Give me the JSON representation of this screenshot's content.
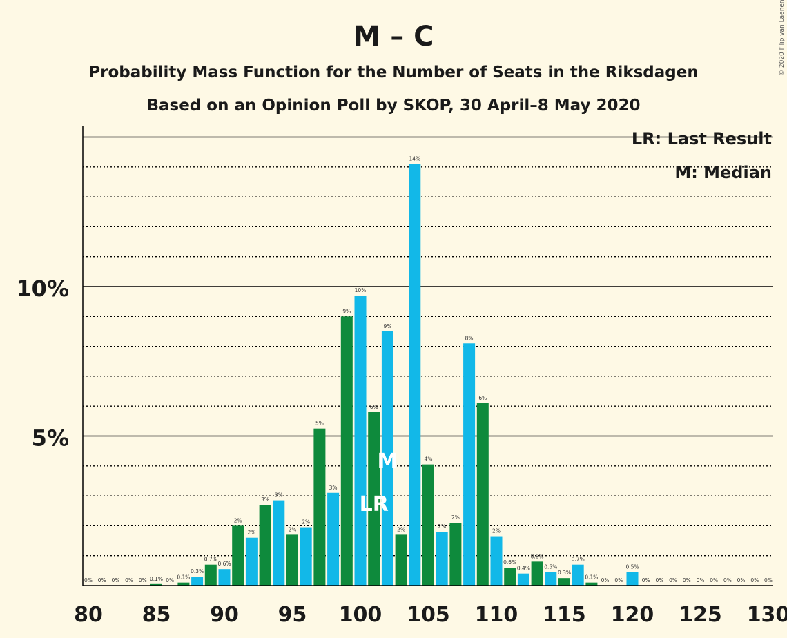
{
  "chart_data": {
    "type": "bar",
    "title": "M – C",
    "subtitle1": "Probability Mass Function for the Number of Seats in the Riksdagen",
    "subtitle2": "Based on an Opinion Poll by SKOP, 30 April–8 May 2020",
    "copyright": "© 2020 Filip van Laenen",
    "legend": [
      "LR: Last Result",
      "M: Median"
    ],
    "legend_position": "top-right",
    "xlim": [
      80,
      130
    ],
    "ylim": [
      0,
      15.3
    ],
    "x_ticks": [
      80,
      85,
      90,
      95,
      100,
      105,
      110,
      115,
      120,
      125,
      130
    ],
    "y_ticks": [
      {
        "value": 5,
        "label": "5%"
      },
      {
        "value": 10,
        "label": "10%"
      }
    ],
    "grid": "dotted at each 1%, solid at 5% and 10%",
    "colors": {
      "odd_seats": "#0e8a3c",
      "even_seats": "#12b8e8"
    },
    "last_result_seat": 101,
    "median_seat": 102,
    "markers": {
      "last_result": "LR",
      "median": "M"
    },
    "x": [
      80,
      81,
      82,
      83,
      84,
      85,
      86,
      87,
      88,
      89,
      90,
      91,
      92,
      93,
      94,
      95,
      96,
      97,
      98,
      99,
      100,
      101,
      102,
      103,
      104,
      105,
      106,
      107,
      108,
      109,
      110,
      111,
      112,
      113,
      114,
      115,
      116,
      117,
      118,
      119,
      120,
      121,
      122,
      123,
      124,
      125,
      126,
      127,
      128,
      129,
      130
    ],
    "values": [
      0,
      0,
      0,
      0,
      0,
      0.05,
      0,
      0.1,
      0.3,
      0.7,
      0.55,
      2.0,
      1.6,
      2.7,
      2.85,
      1.7,
      1.95,
      5.25,
      3.1,
      9.0,
      9.7,
      5.8,
      8.5,
      1.7,
      14.1,
      4.05,
      1.8,
      2.1,
      8.1,
      6.1,
      1.65,
      0.6,
      0.4,
      0.8,
      0.45,
      0.25,
      0.7,
      0.1,
      0,
      0,
      0.45,
      0,
      0,
      0,
      0,
      0,
      0,
      0,
      0,
      0,
      0
    ],
    "labels": [
      "0%",
      "0%",
      "0%",
      "0%",
      "0%",
      "0.1%",
      "0%",
      "0.1%",
      "0.3%",
      "0.7%",
      "0.6%",
      "2%",
      "2%",
      "3%",
      "3%",
      "2%",
      "2%",
      "5%",
      "3%",
      "9%",
      "10%",
      "6%",
      "9%",
      "2%",
      "14%",
      "4%",
      "2%",
      "2%",
      "8%",
      "6%",
      "2%",
      "0.6%",
      "0.4%",
      "0.8%",
      "0.5%",
      "0.3%",
      "0.7%",
      "0.1%",
      "0%",
      "0%",
      "0.5%",
      "0%",
      "0%",
      "0%",
      "0%",
      "0%",
      "0%",
      "0%",
      "0%",
      "0%",
      "0%"
    ]
  }
}
